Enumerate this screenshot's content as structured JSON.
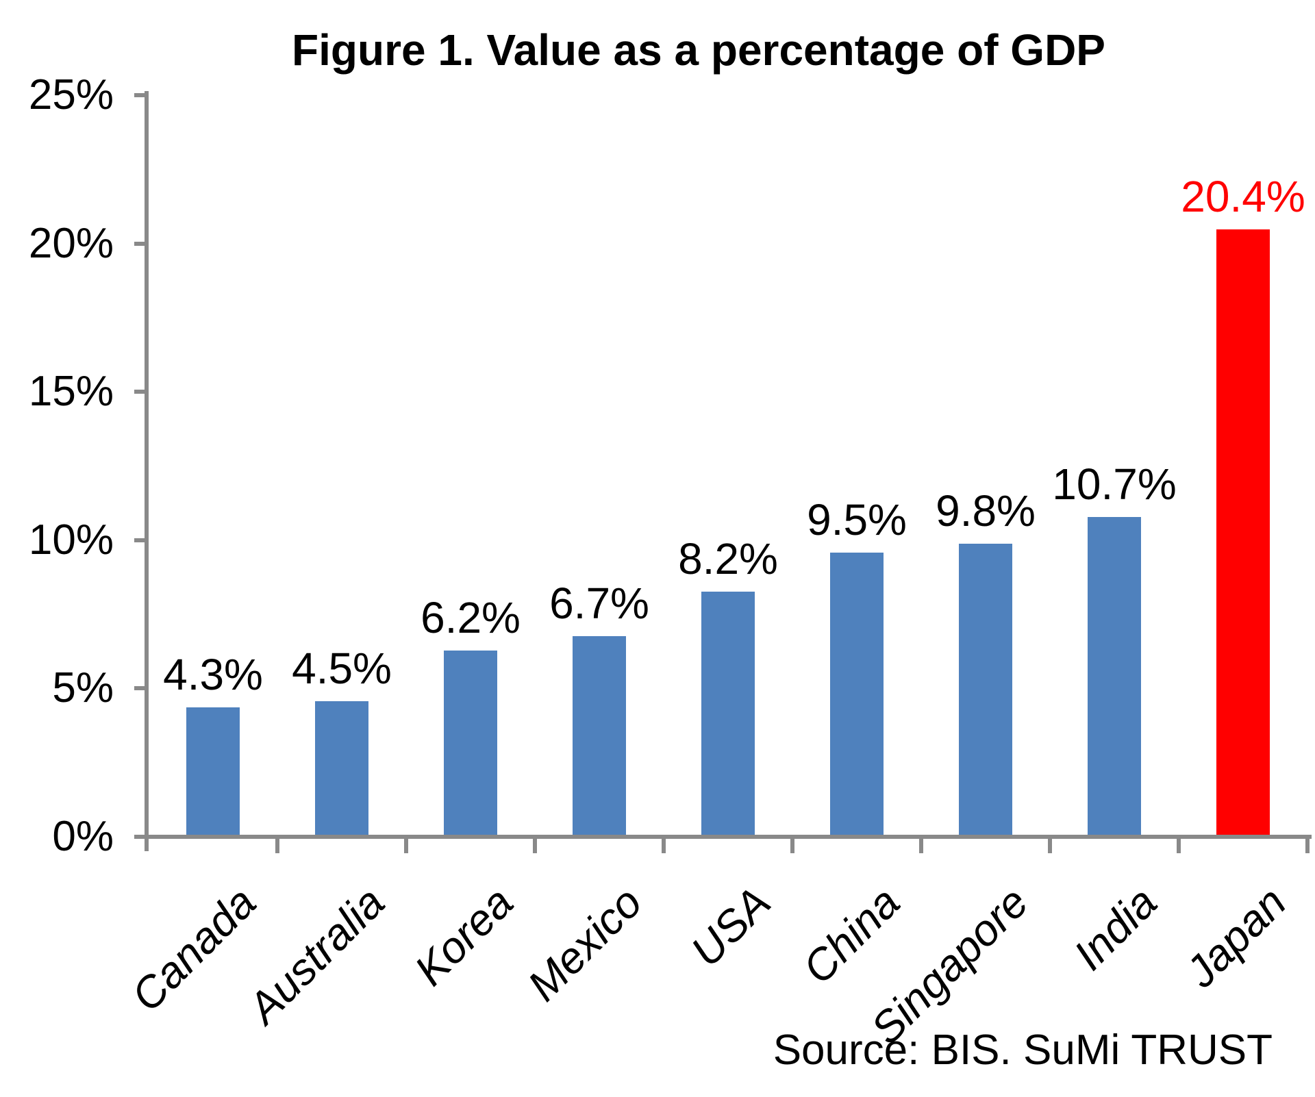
{
  "chart_data": {
    "type": "bar",
    "title": "Figure 1. Value as a percentage of GDP",
    "categories": [
      "Canada",
      "Australia",
      "Korea",
      "Mexico",
      "USA",
      "China",
      "Singapore",
      "India",
      "Japan"
    ],
    "values": [
      4.3,
      4.5,
      6.2,
      6.7,
      8.2,
      9.5,
      9.8,
      10.7,
      20.4
    ],
    "data_labels": [
      "4.3%",
      "4.5%",
      "6.2%",
      "6.7%",
      "8.2%",
      "9.5%",
      "9.8%",
      "10.7%",
      "20.4%"
    ],
    "highlight_index": 8,
    "ylim": [
      0,
      25
    ],
    "ytick_step": 5,
    "ytick_labels": [
      "0%",
      "5%",
      "10%",
      "15%",
      "20%",
      "25%"
    ],
    "grid": false,
    "legend_position": "none",
    "xlabel": "",
    "ylabel": "",
    "source": "Source: BIS. SuMi TRUST",
    "colors": {
      "bar": "#4F81BD",
      "highlight_bar": "#FF0000",
      "data_label": "#000000",
      "highlight_data_label": "#FF0000",
      "axis": "#898989",
      "tick_label": "#000000",
      "title": "#000000"
    }
  }
}
